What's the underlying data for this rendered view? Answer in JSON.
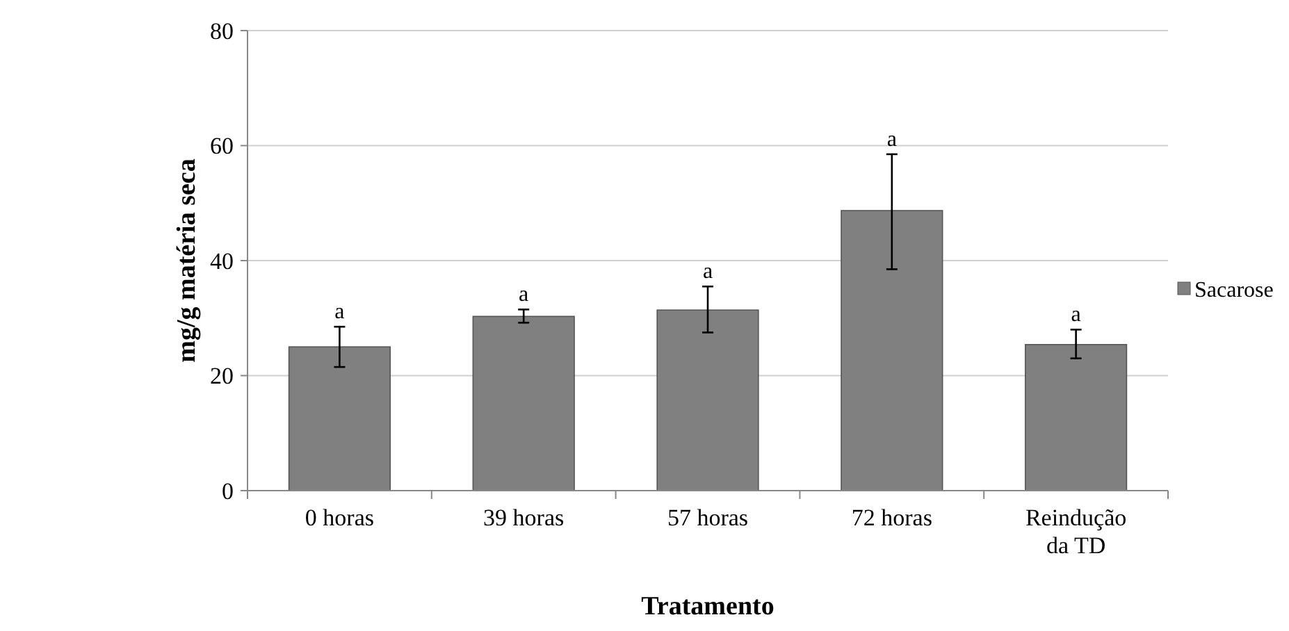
{
  "chart_data": {
    "type": "bar",
    "xlabel": "Tratamento",
    "ylabel": "mg/g matéria seca",
    "categories": [
      "0 horas",
      "39 horas",
      "57 horas",
      "72 horas",
      "Reindução da TD"
    ],
    "series": [
      {
        "name": "Sacarose",
        "color": "#808080",
        "values": [
          25,
          30.3,
          31.4,
          48.7,
          25.4
        ],
        "errors": [
          [
            21.5,
            28.5
          ],
          [
            29.2,
            31.5
          ],
          [
            27.5,
            35.5
          ],
          [
            38.5,
            58.5
          ],
          [
            23,
            28
          ]
        ]
      }
    ],
    "ylim": [
      0,
      80
    ],
    "yticks": [
      0,
      20,
      40,
      60,
      80
    ],
    "grid": "y",
    "legend": "right",
    "annotations": [
      "a",
      "a",
      "a",
      "a",
      "a"
    ]
  }
}
